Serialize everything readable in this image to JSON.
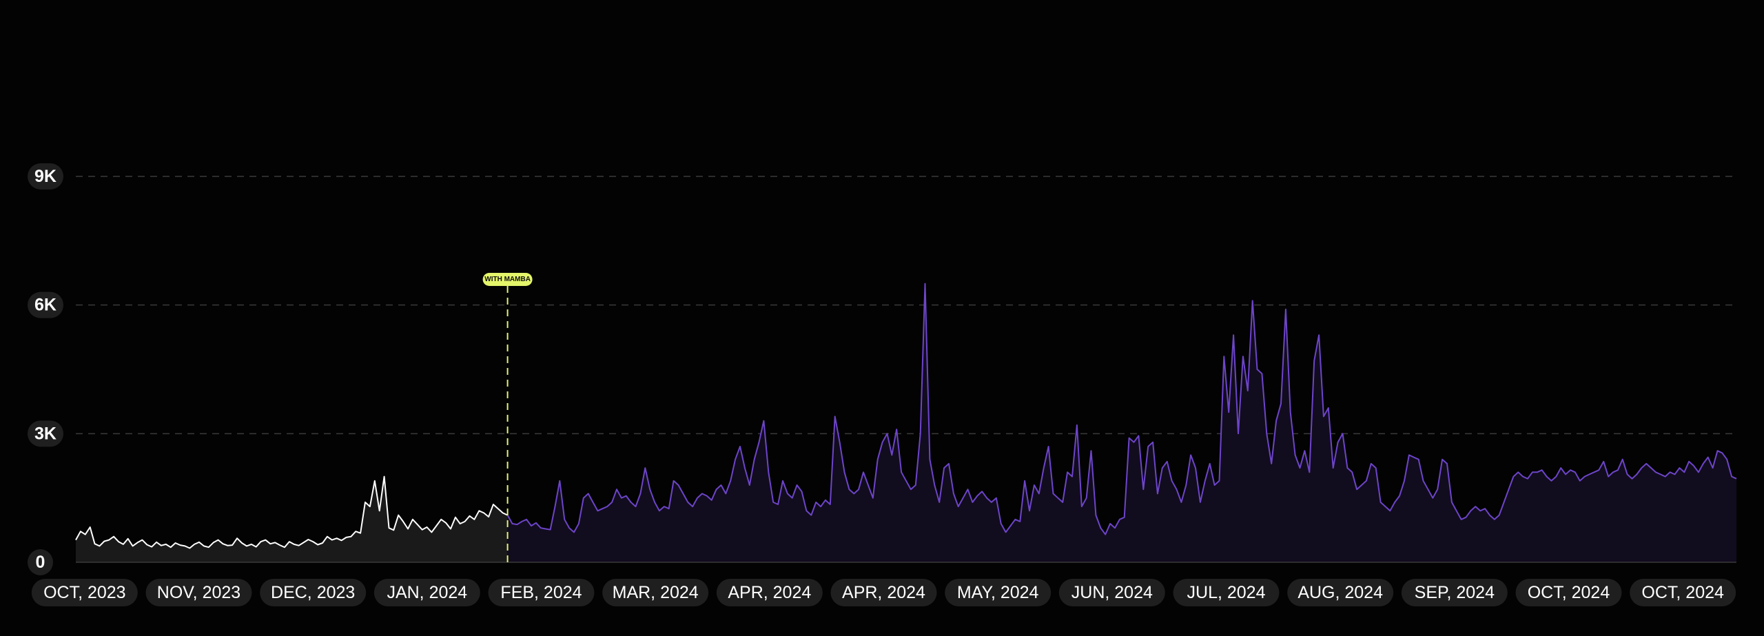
{
  "colors": {
    "background": "#030303",
    "before_line": "#ffffff",
    "before_fill": "#1a1a1a",
    "after_line": "#6d45c9",
    "after_fill": "#120c1f",
    "marker": "#e4f56a",
    "grid": "#3a3a3a",
    "pill": "#1f1f1f"
  },
  "chart_data": {
    "type": "area",
    "ylim": [
      0,
      9000
    ],
    "y_ticks": [
      {
        "value": 0,
        "label": "0"
      },
      {
        "value": 3000,
        "label": "3K"
      },
      {
        "value": 6000,
        "label": "6K"
      },
      {
        "value": 9000,
        "label": "9K"
      }
    ],
    "x_ticks": [
      "OCT, 2023",
      "NOV, 2023",
      "DEC, 2023",
      "JAN, 2024",
      "FEB, 2024",
      "MAR, 2024",
      "APR, 2024",
      "APR, 2024",
      "MAY, 2024",
      "JUN, 2024",
      "JUL, 2024",
      "AUG, 2024",
      "SEP, 2024",
      "OCT, 2024",
      "OCT, 2024"
    ],
    "grid": "dashed horizontal",
    "marker": {
      "label": "WITH MAMBA",
      "at_index": 91
    },
    "values": [
      520,
      720,
      650,
      820,
      430,
      380,
      490,
      520,
      600,
      480,
      420,
      550,
      380,
      460,
      520,
      410,
      360,
      470,
      390,
      420,
      350,
      450,
      400,
      380,
      330,
      420,
      470,
      380,
      350,
      460,
      520,
      430,
      390,
      400,
      560,
      450,
      380,
      420,
      360,
      480,
      520,
      430,
      460,
      400,
      350,
      480,
      420,
      390,
      460,
      530,
      480,
      410,
      450,
      600,
      520,
      560,
      510,
      580,
      600,
      720,
      680,
      1400,
      1300,
      1900,
      1200,
      2000,
      800,
      750,
      1100,
      950,
      780,
      1000,
      880,
      760,
      820,
      700,
      850,
      1000,
      920,
      780,
      1050,
      900,
      950,
      1080,
      1000,
      1200,
      1150,
      1060,
      1350,
      1250,
      1150,
      1100,
      900,
      880,
      950,
      1000,
      850,
      920,
      800,
      780,
      760,
      1300,
      1900,
      1000,
      800,
      700,
      900,
      1500,
      1600,
      1400,
      1200,
      1250,
      1300,
      1400,
      1700,
      1500,
      1550,
      1400,
      1300,
      1600,
      2200,
      1700,
      1400,
      1200,
      1300,
      1250,
      1900,
      1800,
      1600,
      1400,
      1300,
      1500,
      1600,
      1550,
      1450,
      1700,
      1800,
      1600,
      1900,
      2400,
      2700,
      2200,
      1800,
      2400,
      2800,
      3300,
      2100,
      1400,
      1350,
      1900,
      1600,
      1500,
      1800,
      1650,
      1200,
      1100,
      1400,
      1300,
      1450,
      1350,
      3400,
      2800,
      2100,
      1700,
      1600,
      1700,
      2100,
      1800,
      1500,
      2400,
      2800,
      3000,
      2500,
      3100,
      2100,
      1900,
      1700,
      1800,
      3000,
      6500,
      2400,
      1800,
      1400,
      2200,
      2300,
      1600,
      1300,
      1500,
      1700,
      1400,
      1550,
      1650,
      1500,
      1400,
      1500,
      900,
      700,
      850,
      1000,
      950,
      1900,
      1200,
      1800,
      1600,
      2200,
      2700,
      1600,
      1500,
      1400,
      2100,
      2000,
      3200,
      1300,
      1500,
      2600,
      1100,
      800,
      650,
      900,
      800,
      1000,
      1050,
      2900,
      2800,
      2950,
      1700,
      2700,
      2800,
      1600,
      2200,
      2350,
      1900,
      1700,
      1400,
      1800,
      2500,
      2200,
      1400,
      1900,
      2300,
      1800,
      1900,
      4800,
      3500,
      5300,
      3000,
      4800,
      4000,
      6100,
      4500,
      4400,
      3000,
      2300,
      3300,
      3700,
      5900,
      3500,
      2500,
      2200,
      2600,
      2100,
      4700,
      5300,
      3400,
      3600,
      2200,
      2800,
      3000,
      2200,
      2100,
      1700,
      1800,
      1900,
      2300,
      2200,
      1400,
      1300,
      1200,
      1400,
      1550,
      1900,
      2500,
      2450,
      2400,
      1900,
      1700,
      1500,
      1700,
      2400,
      2300,
      1400,
      1200,
      1000,
      1050,
      1200,
      1300,
      1200,
      1250,
      1100,
      1000,
      1100,
      1400,
      1700,
      2000,
      2100,
      2000,
      1950,
      2100,
      2100,
      2150,
      2000,
      1900,
      2000,
      2200,
      2050,
      2150,
      2100,
      1900,
      2000,
      2050,
      2100,
      2150,
      2350,
      2000,
      2100,
      2150,
      2400,
      2050,
      1950,
      2050,
      2200,
      2300,
      2200,
      2100,
      2050,
      2000,
      2100,
      2050,
      2200,
      2100,
      2350,
      2250,
      2100,
      2300,
      2450,
      2200,
      2600,
      2550,
      2400,
      2000,
      1950
    ]
  }
}
